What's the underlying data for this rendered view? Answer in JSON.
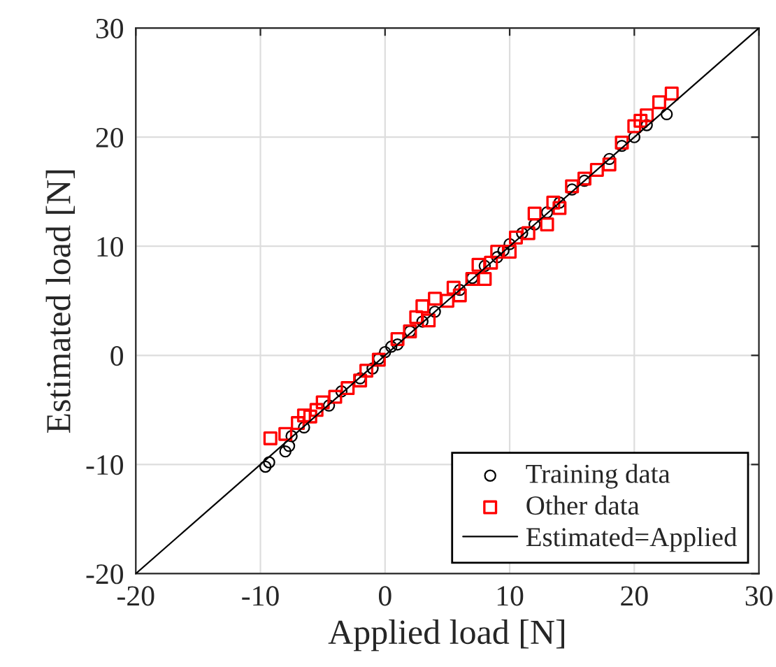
{
  "chart_data": {
    "type": "scatter",
    "xlabel": "Applied load [N]",
    "ylabel": "Estimated load [N]",
    "xlim": [
      -20,
      30
    ],
    "ylim": [
      -20,
      30
    ],
    "xticks": [
      -20,
      -10,
      0,
      10,
      20,
      30
    ],
    "yticks": [
      -20,
      -10,
      0,
      10,
      20,
      30
    ],
    "grid": true,
    "legend": "bottom right",
    "series": [
      {
        "name": "Training data",
        "color": "#000000",
        "marker": "circle",
        "x": [
          -9.6,
          -9.3,
          -8,
          -7.7,
          -7.5,
          -6.5,
          -5.5,
          -4.5,
          -3.5,
          -3,
          -2,
          -1,
          -0.5,
          0,
          0.5,
          1,
          2,
          3,
          4,
          5,
          6,
          7,
          8,
          9,
          9.5,
          10,
          10.5,
          11,
          12,
          13,
          14,
          15,
          16,
          17,
          18,
          19,
          20,
          21,
          22.6
        ],
        "values": [
          -10.2,
          -9.8,
          -8.8,
          -8.3,
          -7.4,
          -6.6,
          null,
          -4.6,
          -3.3,
          null,
          -2.1,
          -1.2,
          -0.3,
          0.3,
          0.8,
          1,
          2.2,
          3.1,
          4,
          null,
          6,
          7.1,
          8.2,
          9,
          9.6,
          10.2,
          null,
          11.2,
          12,
          13.1,
          14,
          15.2,
          16,
          null,
          18,
          19.2,
          20,
          21.1,
          22.1
        ]
      },
      {
        "name": "Other data",
        "color": "#ff0000",
        "marker": "square",
        "x": [
          -9.2,
          -8,
          -7,
          -6.5,
          -6,
          -5.5,
          -5,
          -4,
          -3,
          -2,
          -1.5,
          -0.5,
          1,
          2,
          2.5,
          3,
          3.5,
          4,
          5,
          5.5,
          6,
          7,
          7.5,
          8,
          8.5,
          9,
          10,
          10.5,
          11.5,
          12,
          13,
          13.5,
          14,
          15,
          16,
          17,
          18,
          19,
          20,
          20.5,
          21,
          22,
          23
        ],
        "values": [
          -7.6,
          -7.2,
          -6.2,
          -5.5,
          -5.6,
          -5,
          -4.3,
          -3.8,
          -3,
          -2.3,
          -1.4,
          -0.4,
          1.5,
          2.2,
          3.5,
          4.5,
          3.2,
          5.2,
          5,
          6.2,
          5.5,
          7,
          8.3,
          7,
          8.5,
          9.5,
          9.5,
          10.8,
          11.2,
          13,
          12,
          14,
          13.5,
          15.5,
          16.2,
          17,
          17.5,
          19.5,
          21,
          21.5,
          22,
          23.2,
          24
        ]
      },
      {
        "name": "Estimated=Applied",
        "type": "line",
        "color": "#000000",
        "line_style": "solid",
        "x": [
          -20,
          30
        ],
        "values": [
          -20,
          30
        ]
      }
    ]
  }
}
